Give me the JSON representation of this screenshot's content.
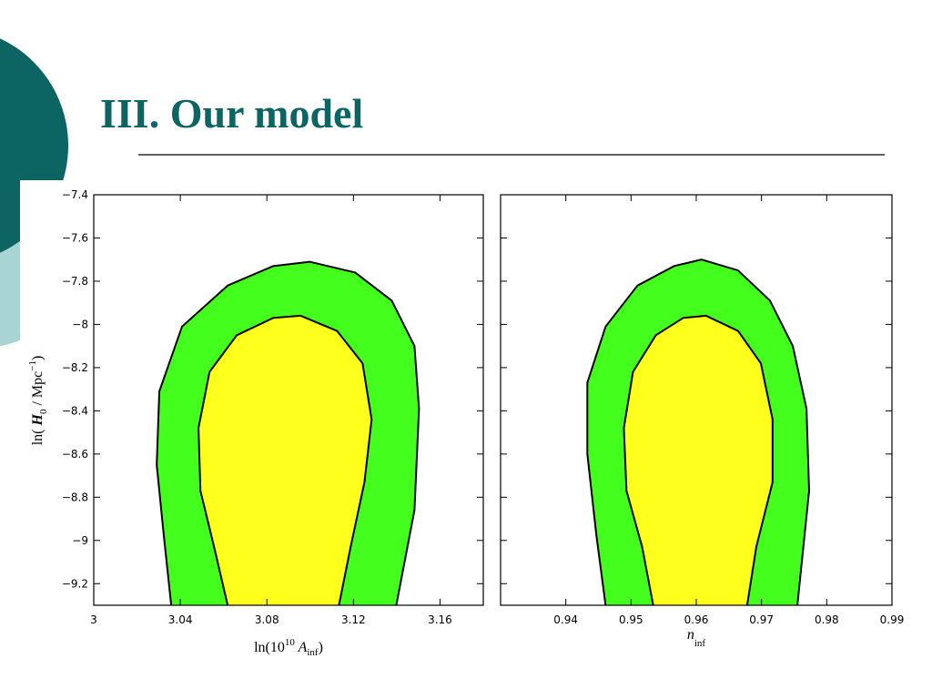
{
  "title": "III. Our model",
  "chart_data": [
    {
      "type": "contour",
      "xlabel": [
        "ln(10",
        "10",
        " A",
        "inf",
        ")"
      ],
      "ylabel": [
        "ln( ",
        "H",
        "0",
        " / Mpc",
        "−1",
        ")"
      ],
      "xlim": [
        3,
        3.18
      ],
      "ylim": [
        -9.3,
        -7.4
      ],
      "xticks": [
        3,
        3.04,
        3.08,
        3.12,
        3.16
      ],
      "yticks": [
        {
          "value": -7.4,
          "label": "−7.4"
        },
        {
          "value": -7.6,
          "label": "−7.6"
        },
        {
          "value": -7.8,
          "label": "−7.8"
        },
        {
          "value": -8,
          "label": "−8"
        },
        {
          "value": -8.2,
          "label": "−8.2"
        },
        {
          "value": -8.4,
          "label": "−8.4"
        },
        {
          "value": -8.6,
          "label": "−8.6"
        },
        {
          "value": -8.8,
          "label": "−8.8"
        },
        {
          "value": -9,
          "label": "−9"
        },
        {
          "value": -9.2,
          "label": "−9.2"
        }
      ],
      "ytick_labels": true,
      "series": [
        {
          "color": "#44ff1e",
          "x": [
            3.0358,
            3.0324,
            3.0291,
            3.0303,
            3.0408,
            3.0619,
            3.0829,
            3.0998,
            3.1208,
            3.1377,
            3.1482,
            3.1503,
            3.1482,
            3.1398
          ],
          "y": [
            -9.3,
            -8.98,
            -8.65,
            -8.31,
            -8.01,
            -7.82,
            -7.73,
            -7.71,
            -7.76,
            -7.89,
            -8.1,
            -8.39,
            -8.86,
            -9.3
          ]
        },
        {
          "color": "#ffff1e",
          "x": [
            3.0619,
            3.0556,
            3.0493,
            3.0484,
            3.0535,
            3.0661,
            3.0829,
            3.0956,
            3.1124,
            3.1242,
            3.1284,
            3.1251,
            3.1187,
            3.1133
          ],
          "y": [
            -9.3,
            -9.03,
            -8.77,
            -8.48,
            -8.22,
            -8.05,
            -7.97,
            -7.96,
            -8.03,
            -8.18,
            -8.44,
            -8.73,
            -9.03,
            -9.3
          ]
        }
      ]
    },
    {
      "type": "contour",
      "xlabel": [
        "n",
        "inf"
      ],
      "xlim": [
        0.93,
        0.99
      ],
      "ylim": [
        -9.3,
        -7.4
      ],
      "xticks": [
        0.94,
        0.95,
        0.96,
        0.97,
        0.98,
        0.99
      ],
      "yticks": [
        -7.4,
        -7.6,
        -7.8,
        -8,
        -8.2,
        -8.4,
        -8.6,
        -8.8,
        -9,
        -9.2
      ],
      "ytick_labels": false,
      "series": [
        {
          "color": "#44ff1e",
          "x": [
            0.9461,
            0.9447,
            0.9433,
            0.9433,
            0.9461,
            0.951,
            0.9566,
            0.9608,
            0.9664,
            0.9713,
            0.9748,
            0.9769,
            0.9773,
            0.9755
          ],
          "y": [
            -9.3,
            -8.98,
            -8.6,
            -8.27,
            -8.01,
            -7.82,
            -7.73,
            -7.7,
            -7.75,
            -7.89,
            -8.1,
            -8.39,
            -8.77,
            -9.3
          ]
        },
        {
          "color": "#ffff1e",
          "x": [
            0.9534,
            0.9517,
            0.9493,
            0.9489,
            0.9503,
            0.9538,
            0.958,
            0.9615,
            0.9664,
            0.9699,
            0.9717,
            0.9717,
            0.9692,
            0.9678
          ],
          "y": [
            -9.3,
            -9.03,
            -8.77,
            -8.48,
            -8.22,
            -8.05,
            -7.97,
            -7.96,
            -8.03,
            -8.18,
            -8.44,
            -8.73,
            -9.03,
            -9.3
          ]
        }
      ]
    }
  ]
}
